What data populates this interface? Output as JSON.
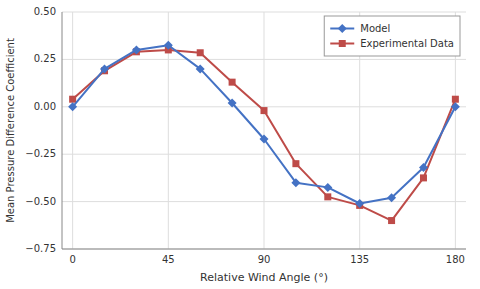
{
  "chart_data": {
    "type": "line",
    "xlabel": "Relative Wind Angle (°)",
    "ylabel": "Mean Pressure Difference Coefficient",
    "x": [
      0,
      15,
      30,
      45,
      60,
      75,
      90,
      105,
      120,
      135,
      150,
      165,
      180
    ],
    "series": [
      {
        "name": "Model",
        "color": "#4472C4",
        "marker": "diamond",
        "values": [
          0.0,
          0.2,
          0.3,
          0.325,
          0.2,
          0.02,
          -0.17,
          -0.4,
          -0.425,
          -0.51,
          -0.48,
          -0.32,
          0.0
        ]
      },
      {
        "name": "Experimental Data",
        "color": "#BE4B48",
        "marker": "square",
        "values": [
          0.04,
          0.19,
          0.29,
          0.3,
          0.285,
          0.13,
          -0.02,
          -0.3,
          -0.475,
          -0.52,
          -0.6,
          -0.375,
          0.04
        ]
      }
    ],
    "xlim": [
      -5,
      185
    ],
    "ylim": [
      -0.75,
      0.5
    ],
    "xticks": [
      0,
      45,
      90,
      135,
      180
    ],
    "yticks": [
      {
        "value": -0.75,
        "label": "−0.75"
      },
      {
        "value": -0.5,
        "label": "−0.50"
      },
      {
        "value": -0.25,
        "label": "−0.25"
      },
      {
        "value": 0.0,
        "label": "0.00"
      },
      {
        "value": 0.25,
        "label": "0.25"
      },
      {
        "value": 0.5,
        "label": "0.50"
      }
    ],
    "grid": true,
    "legend": "upper right"
  }
}
